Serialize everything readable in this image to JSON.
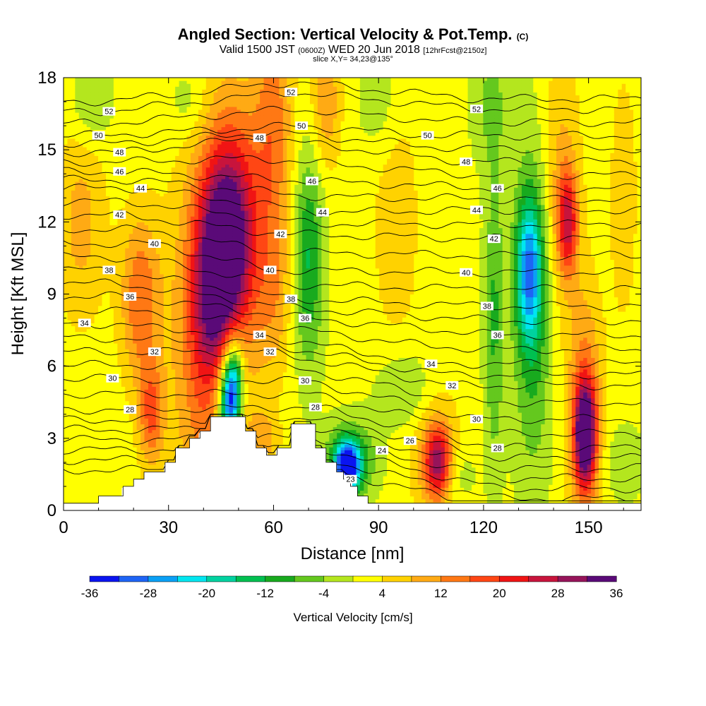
{
  "title": {
    "main": "Angled Section: Vertical Velocity & Pot.Temp.",
    "main_unit": "(C)",
    "valid_prefix": "Valid 1500 JST",
    "valid_utc": "(0600Z)",
    "valid_date": "WED 20 Jun 2018",
    "forecast": "[12hrFcst@2150z]",
    "slice": "slice X,Y= 34,23@135°"
  },
  "chart_data": {
    "type": "heatmap",
    "xlabel": "Distance [nm]",
    "ylabel": "Height [Kft MSL]",
    "xlim": [
      0,
      165
    ],
    "ylim": [
      0,
      18
    ],
    "xticks": [
      0,
      30,
      60,
      90,
      120,
      150
    ],
    "yticks": [
      0,
      3,
      6,
      9,
      12,
      15,
      18
    ],
    "colorbar": {
      "label": "Vertical Velocity [cm/s]",
      "ticks": [
        -36,
        -28,
        -20,
        -12,
        -4,
        4,
        12,
        20,
        28,
        36
      ],
      "levels": [
        -36,
        -32,
        -28,
        -24,
        -20,
        -16,
        -12,
        -8,
        -4,
        0,
        4,
        8,
        12,
        16,
        20,
        24,
        28,
        32,
        36
      ],
      "colors": [
        "#0a14f0",
        "#1e64f5",
        "#0aa0f5",
        "#00e6f0",
        "#00d2a0",
        "#00c050",
        "#18aa1e",
        "#64c81e",
        "#b4e61e",
        "#ffff00",
        "#ffd200",
        "#ffaa14",
        "#ff7814",
        "#ff4614",
        "#f01414",
        "#c8143c",
        "#96145a",
        "#5a0a78"
      ]
    },
    "theta_contour_labels": [
      {
        "value": 52,
        "x": 13,
        "y": 16.6
      },
      {
        "value": 50,
        "x": 10,
        "y": 15.6
      },
      {
        "value": 48,
        "x": 16,
        "y": 14.9
      },
      {
        "value": 46,
        "x": 16,
        "y": 14.1
      },
      {
        "value": 44,
        "x": 22,
        "y": 13.4
      },
      {
        "value": 42,
        "x": 16,
        "y": 12.3
      },
      {
        "value": 40,
        "x": 26,
        "y": 11.1
      },
      {
        "value": 38,
        "x": 13,
        "y": 10.0
      },
      {
        "value": 36,
        "x": 19,
        "y": 8.9
      },
      {
        "value": 34,
        "x": 6,
        "y": 7.8
      },
      {
        "value": 32,
        "x": 26,
        "y": 6.6
      },
      {
        "value": 30,
        "x": 14,
        "y": 5.5
      },
      {
        "value": 28,
        "x": 19,
        "y": 4.2
      },
      {
        "value": 52,
        "x": 65,
        "y": 17.4
      },
      {
        "value": 50,
        "x": 68,
        "y": 16.0
      },
      {
        "value": 48,
        "x": 56,
        "y": 15.5
      },
      {
        "value": 46,
        "x": 71,
        "y": 13.7
      },
      {
        "value": 44,
        "x": 74,
        "y": 12.4
      },
      {
        "value": 42,
        "x": 62,
        "y": 11.5
      },
      {
        "value": 40,
        "x": 59,
        "y": 10.0
      },
      {
        "value": 38,
        "x": 65,
        "y": 8.8
      },
      {
        "value": 36,
        "x": 69,
        "y": 8.0
      },
      {
        "value": 34,
        "x": 56,
        "y": 7.3
      },
      {
        "value": 32,
        "x": 59,
        "y": 6.6
      },
      {
        "value": 30,
        "x": 69,
        "y": 5.4
      },
      {
        "value": 28,
        "x": 72,
        "y": 4.3
      },
      {
        "value": 52,
        "x": 118,
        "y": 16.7
      },
      {
        "value": 50,
        "x": 104,
        "y": 15.6
      },
      {
        "value": 48,
        "x": 115,
        "y": 14.5
      },
      {
        "value": 46,
        "x": 124,
        "y": 13.4
      },
      {
        "value": 44,
        "x": 118,
        "y": 12.5
      },
      {
        "value": 42,
        "x": 123,
        "y": 11.3
      },
      {
        "value": 40,
        "x": 115,
        "y": 9.9
      },
      {
        "value": 38,
        "x": 121,
        "y": 8.5
      },
      {
        "value": 36,
        "x": 124,
        "y": 7.3
      },
      {
        "value": 34,
        "x": 105,
        "y": 6.1
      },
      {
        "value": 32,
        "x": 111,
        "y": 5.2
      },
      {
        "value": 30,
        "x": 118,
        "y": 3.8
      },
      {
        "value": 28,
        "x": 124,
        "y": 2.6
      },
      {
        "value": 26,
        "x": 99,
        "y": 2.9
      },
      {
        "value": 24,
        "x": 91,
        "y": 2.5
      },
      {
        "value": 23,
        "x": 82,
        "y": 1.3
      }
    ],
    "terrain_profile": [
      [
        0,
        0.3
      ],
      [
        10,
        0.3
      ],
      [
        10,
        0.6
      ],
      [
        17,
        0.6
      ],
      [
        17,
        1.0
      ],
      [
        20,
        1.0
      ],
      [
        20,
        1.3
      ],
      [
        23,
        1.3
      ],
      [
        23,
        1.6
      ],
      [
        29,
        1.6
      ],
      [
        29,
        2.0
      ],
      [
        32,
        2.0
      ],
      [
        32,
        2.6
      ],
      [
        36,
        2.6
      ],
      [
        36,
        3.0
      ],
      [
        39,
        3.0
      ],
      [
        39,
        3.3
      ],
      [
        42,
        3.3
      ],
      [
        42,
        3.9
      ],
      [
        52,
        3.9
      ],
      [
        52,
        3.3
      ],
      [
        55,
        3.3
      ],
      [
        55,
        2.6
      ],
      [
        58,
        2.6
      ],
      [
        58,
        2.3
      ],
      [
        61,
        2.3
      ],
      [
        61,
        2.6
      ],
      [
        65,
        2.6
      ],
      [
        65,
        3.6
      ],
      [
        72,
        3.6
      ],
      [
        72,
        2.6
      ],
      [
        75,
        2.6
      ],
      [
        75,
        2.0
      ],
      [
        78,
        2.0
      ],
      [
        78,
        1.6
      ],
      [
        80,
        1.6
      ],
      [
        80,
        1.3
      ],
      [
        82,
        1.3
      ],
      [
        82,
        1.0
      ],
      [
        84,
        1.0
      ],
      [
        84,
        0.6
      ],
      [
        87,
        0.6
      ],
      [
        87,
        0.3
      ],
      [
        165,
        0.3
      ]
    ],
    "velocity_features": [
      {
        "x": 46,
        "y": 10.5,
        "sx": 5.5,
        "sy": 3.2,
        "value": 38,
        "tilt": 0.35
      },
      {
        "x": 43,
        "y": 8.0,
        "sx": 8.0,
        "sy": 6.5,
        "value": 14,
        "tilt": 0.2
      },
      {
        "x": 48,
        "y": 4.8,
        "sx": 2.0,
        "sy": 1.3,
        "value": -36,
        "tilt": 0.3
      },
      {
        "x": 47,
        "y": 5.6,
        "sx": 3.0,
        "sy": 2.2,
        "value": -16,
        "tilt": 0.3
      },
      {
        "x": 70,
        "y": 10.5,
        "sx": 3.0,
        "sy": 3.2,
        "value": -14,
        "tilt": 0
      },
      {
        "x": 81,
        "y": 1.8,
        "sx": 2.4,
        "sy": 0.7,
        "value": -36,
        "tilt": 0
      },
      {
        "x": 82,
        "y": 2.1,
        "sx": 5.0,
        "sy": 1.1,
        "value": -14,
        "tilt": 0
      },
      {
        "x": 107,
        "y": 2.0,
        "sx": 2.6,
        "sy": 1.0,
        "value": 24,
        "tilt": 0
      },
      {
        "x": 106,
        "y": 2.5,
        "sx": 5.0,
        "sy": 2.2,
        "value": 8,
        "tilt": 0
      },
      {
        "x": 133,
        "y": 10.0,
        "sx": 2.5,
        "sy": 2.0,
        "value": -22,
        "tilt": 0
      },
      {
        "x": 134,
        "y": 8.5,
        "sx": 4.0,
        "sy": 5.0,
        "value": -12,
        "tilt": 0
      },
      {
        "x": 123,
        "y": 8.0,
        "sx": 2.0,
        "sy": 4.5,
        "value": -10,
        "tilt": 0
      },
      {
        "x": 149,
        "y": 3.2,
        "sx": 2.0,
        "sy": 1.4,
        "value": 36,
        "tilt": 0
      },
      {
        "x": 149,
        "y": 4.0,
        "sx": 3.5,
        "sy": 3.5,
        "value": 14,
        "tilt": 0
      },
      {
        "x": 144,
        "y": 12.0,
        "sx": 2.0,
        "sy": 1.5,
        "value": 20,
        "tilt": 0
      },
      {
        "x": 142,
        "y": 13.5,
        "sx": 4.0,
        "sy": 4.0,
        "value": 8,
        "tilt": 0
      },
      {
        "x": 22,
        "y": 8.8,
        "sx": 4.0,
        "sy": 2.5,
        "value": 14,
        "tilt": 0
      },
      {
        "x": 25,
        "y": 4.0,
        "sx": 2.5,
        "sy": 1.5,
        "value": 14,
        "tilt": 0
      },
      {
        "x": 60,
        "y": 16.0,
        "sx": 4.0,
        "sy": 3.5,
        "value": 12,
        "tilt": 0
      },
      {
        "x": 75,
        "y": 17.0,
        "sx": 3.0,
        "sy": 2.0,
        "value": 10,
        "tilt": 0
      },
      {
        "x": 60,
        "y": 9.0,
        "sx": 3.5,
        "sy": 2.5,
        "value": 8,
        "tilt": 0
      },
      {
        "x": 122,
        "y": 17.0,
        "sx": 4.0,
        "sy": 2.0,
        "value": -6,
        "tilt": 0
      },
      {
        "x": 90,
        "y": 17.0,
        "sx": 4.0,
        "sy": 1.5,
        "value": -5,
        "tilt": 0
      },
      {
        "x": 8,
        "y": 17.0,
        "sx": 4.0,
        "sy": 1.2,
        "value": -7,
        "tilt": 0
      },
      {
        "x": 36,
        "y": 17.0,
        "sx": 4.0,
        "sy": 1.2,
        "value": -5,
        "tilt": 0
      },
      {
        "x": 98,
        "y": 5.0,
        "sx": 6.0,
        "sy": 1.2,
        "value": -7,
        "tilt": 0
      },
      {
        "x": 95,
        "y": 12.0,
        "sx": 5.0,
        "sy": 4.0,
        "value": 5,
        "tilt": 0
      },
      {
        "x": 5,
        "y": 12.0,
        "sx": 5.0,
        "sy": 3.0,
        "value": 8,
        "tilt": 0
      },
      {
        "x": 160,
        "y": 13.0,
        "sx": 3.0,
        "sy": 4.0,
        "value": 5,
        "tilt": 0
      },
      {
        "x": 160,
        "y": 2.0,
        "sx": 4.0,
        "sy": 1.2,
        "value": -5,
        "tilt": 0
      },
      {
        "x": 57,
        "y": 3.0,
        "sx": 3.0,
        "sy": 0.8,
        "value": 8,
        "tilt": 0
      },
      {
        "x": 112,
        "y": 1.5,
        "sx": 4.0,
        "sy": 0.9,
        "value": -5,
        "tilt": 0
      }
    ]
  }
}
